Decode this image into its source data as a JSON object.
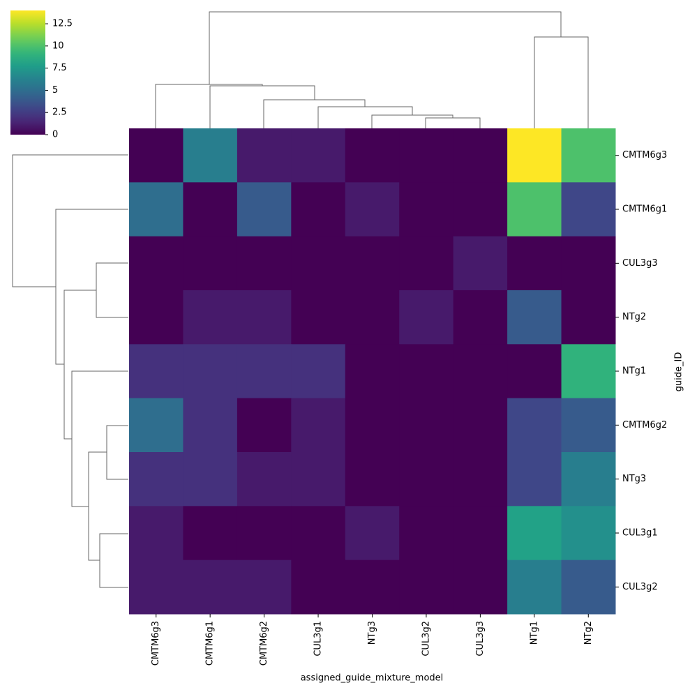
{
  "chart_data": {
    "type": "heatmap",
    "x_label": "assigned_guide_mixture_model",
    "y_label": "guide_ID",
    "columns": [
      "CMTM6g3",
      "CMTM6g1",
      "CMTM6g2",
      "CUL3g1",
      "NTg3",
      "CUL3g2",
      "CUL3g3",
      "NTg1",
      "NTg2"
    ],
    "rows": [
      "CMTM6g3",
      "CMTM6g1",
      "CUL3g3",
      "NTg2",
      "NTg1",
      "CMTM6g2",
      "NTg3",
      "CUL3g1",
      "CUL3g2"
    ],
    "values": [
      [
        0,
        6,
        1,
        1,
        0,
        0,
        0,
        14,
        10
      ],
      [
        5,
        0,
        4,
        0,
        1,
        0,
        0,
        10,
        3
      ],
      [
        0,
        0,
        0,
        0,
        0,
        0,
        1,
        0,
        0
      ],
      [
        0,
        1,
        1,
        0,
        0,
        1,
        0,
        4,
        0
      ],
      [
        2,
        2,
        2,
        2,
        0,
        0,
        0,
        0,
        9
      ],
      [
        5,
        2,
        0,
        1,
        0,
        0,
        0,
        3,
        4
      ],
      [
        2,
        2,
        1,
        1,
        0,
        0,
        0,
        3,
        6
      ],
      [
        1,
        0,
        0,
        0,
        1,
        0,
        0,
        8,
        7
      ],
      [
        1,
        1,
        1,
        0,
        0,
        0,
        0,
        6,
        4
      ]
    ],
    "colormap": [
      "#440154",
      "#482878",
      "#3e4989",
      "#31688e",
      "#26828e",
      "#1f9e89",
      "#35b779",
      "#6ece58",
      "#b5de2b",
      "#fde725"
    ],
    "clim": [
      0,
      14
    ],
    "cticks": [
      0,
      2.5,
      5,
      7.5,
      10,
      12.5
    ]
  }
}
